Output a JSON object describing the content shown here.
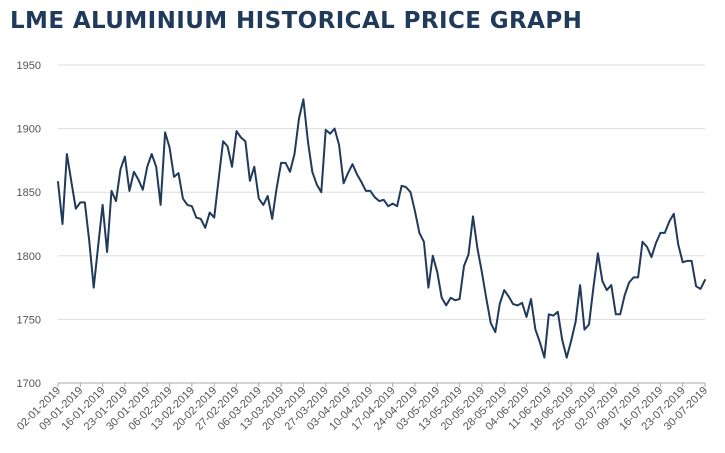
{
  "title": "LME ALUMINIUM HISTORICAL PRICE GRAPH",
  "colors": {
    "title": "#1f3a5b",
    "line": "#1f3a5b",
    "grid": "#dddddd",
    "axis": "#aaaaaa",
    "tick_text": "#555555"
  },
  "chart_data": {
    "type": "line",
    "title": "LME ALUMINIUM HISTORICAL PRICE GRAPH",
    "xlabel": "",
    "ylabel": "",
    "ylim": [
      1700,
      1950
    ],
    "yticks": [
      1700,
      1750,
      1800,
      1850,
      1900,
      1950
    ],
    "grid": true,
    "x_tick_labels": [
      "02-01-2019",
      "09-01-2019",
      "16-01-2019",
      "23-01-2019",
      "30-01-2019",
      "06-02-2019",
      "13-02-2019",
      "20-02-2019",
      "27-02-2019",
      "06-03-2019",
      "13-03-2019",
      "20-03-2019",
      "27-03-2019",
      "03-04-2019",
      "10-04-2019",
      "17-04-2019",
      "24-04-2019",
      "03-05-2019",
      "13-05-2019",
      "20-05-2019",
      "28-05-2019",
      "04-06-2019",
      "11-06-2019",
      "18-06-2019",
      "25-06-2019",
      "02-07-2019",
      "09-07-2019",
      "16-07-2019",
      "23-07-2019",
      "30-07-2019"
    ],
    "series": [
      {
        "values": [
          1858,
          1825,
          1880,
          1858,
          1837,
          1842,
          1842,
          1812,
          1775,
          1808,
          1840,
          1803,
          1851,
          1843,
          1868,
          1878,
          1851,
          1866,
          1860,
          1852,
          1870,
          1880,
          1870,
          1840,
          1897,
          1885,
          1862,
          1865,
          1845,
          1840,
          1839,
          1830,
          1829,
          1822,
          1834,
          1830,
          1860,
          1890,
          1886,
          1870,
          1898,
          1893,
          1890,
          1859,
          1870,
          1845,
          1840,
          1847,
          1829,
          1853,
          1873,
          1873,
          1866,
          1880,
          1908,
          1923,
          1890,
          1866,
          1856,
          1850,
          1899,
          1896,
          1900,
          1887,
          1857,
          1865,
          1872,
          1864,
          1858,
          1851,
          1851,
          1846,
          1843,
          1844,
          1839,
          1841,
          1839,
          1855,
          1854,
          1850,
          1835,
          1818,
          1811,
          1775,
          1800,
          1787,
          1767,
          1761,
          1767,
          1765,
          1766,
          1792,
          1801,
          1831,
          1806,
          1787,
          1766,
          1747,
          1740,
          1762,
          1773,
          1768,
          1762,
          1761,
          1763,
          1752,
          1766,
          1742,
          1732,
          1720,
          1754,
          1753,
          1756,
          1734,
          1720,
          1733,
          1748,
          1777,
          1742,
          1746,
          1775,
          1802,
          1780,
          1773,
          1777,
          1754,
          1754,
          1769,
          1779,
          1783,
          1783,
          1811,
          1807,
          1799,
          1810,
          1818,
          1818,
          1827,
          1833,
          1809,
          1795,
          1796,
          1796,
          1776,
          1774,
          1781
        ]
      }
    ]
  }
}
